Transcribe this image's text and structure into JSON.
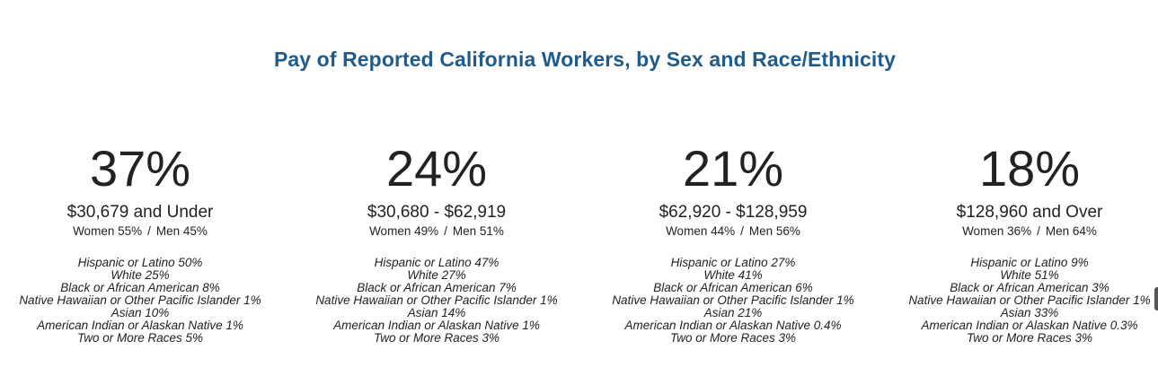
{
  "title": "Pay of Reported California Workers, by Sex and Race/Ethnicity",
  "colors": {
    "title": "#1f5c8b",
    "text": "#222222"
  },
  "chart_data": {
    "type": "table",
    "title": "Pay of Reported California Workers, by Sex and Race/Ethnicity",
    "groups": [
      {
        "share": "37%",
        "share_value": 37,
        "range": "$30,679 and Under",
        "women": "Women 55%",
        "men": "Men 45%",
        "races": [
          "Hispanic or Latino 50%",
          "White 25%",
          "Black or African American 8%",
          "Native Hawaiian or Other Pacific Islander 1%",
          "Asian 10%",
          "American Indian or Alaskan Native 1%",
          "Two or More Races 5%"
        ]
      },
      {
        "share": "24%",
        "share_value": 24,
        "range": "$30,680 - $62,919",
        "women": "Women 49%",
        "men": "Men 51%",
        "races": [
          "Hispanic or Latino 47%",
          "White 27%",
          "Black or African American 7%",
          "Native Hawaiian or Other Pacific Islander 1%",
          "Asian 14%",
          "American Indian or Alaskan Native 1%",
          "Two or More Races 3%"
        ]
      },
      {
        "share": "21%",
        "share_value": 21,
        "range": "$62,920 - $128,959",
        "women": "Women 44%",
        "men": "Men 56%",
        "races": [
          "Hispanic or Latino 27%",
          "White 41%",
          "Black or African American 6%",
          "Native Hawaiian or Other Pacific Islander 1%",
          "Asian 21%",
          "American Indian or Alaskan Native 0.4%",
          "Two or More Races 3%"
        ]
      },
      {
        "share": "18%",
        "share_value": 18,
        "range": "$128,960 and Over",
        "women": "Women 36%",
        "men": "Men 64%",
        "races": [
          "Hispanic or Latino 9%",
          "White 51%",
          "Black or African American 3%",
          "Native Hawaiian or Other Pacific Islander 1%",
          "Asian 33%",
          "American Indian or Alaskan Native 0.3%",
          "Two or More Races 3%"
        ]
      }
    ]
  }
}
